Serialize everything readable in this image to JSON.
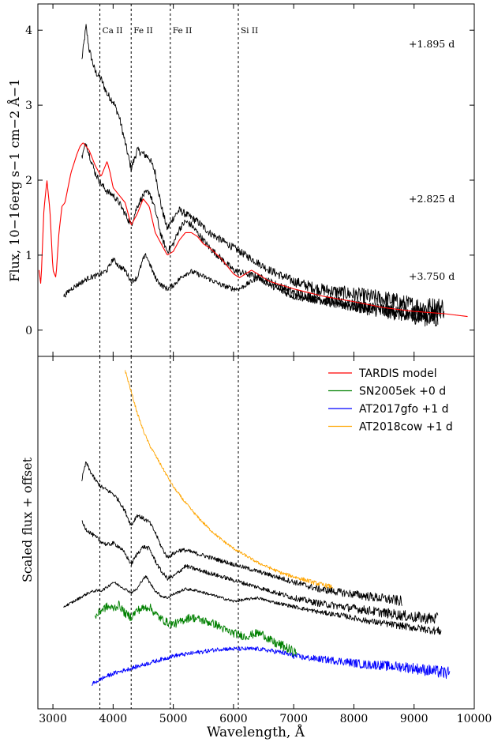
{
  "chart_data": [
    {
      "type": "line",
      "panel": "top",
      "xlabel": "",
      "ylabel": "Flux, 10−16erg s−1 cm−2 Å−1",
      "xlim": [
        2750,
        10000
      ],
      "ylim": [
        -0.35,
        4.35
      ],
      "y_ticks": [
        0,
        1,
        2,
        3,
        4
      ],
      "grid": false,
      "line_annotations": [
        {
          "label": "Ca II",
          "x": 3780
        },
        {
          "label": "Fe II",
          "x": 4300
        },
        {
          "label": "Fe II",
          "x": 4950
        },
        {
          "label": "Si II",
          "x": 6080
        }
      ],
      "epoch_labels": [
        "+1.895 d",
        "+2.825 d",
        "+3.750 d"
      ],
      "series": [
        {
          "color": "#000000",
          "noise": 0.05,
          "x": [
            3480,
            3550,
            3600,
            3700,
            3800,
            3900,
            4000,
            4100,
            4200,
            4300,
            4400,
            4500,
            4600,
            4700,
            4800,
            4900,
            5000,
            5100,
            5200,
            5300,
            5400,
            5600,
            5800,
            6000,
            6200,
            6400,
            6600,
            7000,
            7400,
            7800,
            8200,
            8600,
            8800,
            9000,
            9200,
            9500
          ],
          "y": [
            3.6,
            4.05,
            3.75,
            3.45,
            3.35,
            3.15,
            3.05,
            2.85,
            2.5,
            2.15,
            2.4,
            2.35,
            2.3,
            2.1,
            1.65,
            1.35,
            1.5,
            1.6,
            1.55,
            1.5,
            1.45,
            1.3,
            1.2,
            1.1,
            1.0,
            0.9,
            0.8,
            0.65,
            0.55,
            0.5,
            0.45,
            0.4,
            0.35,
            0.32,
            0.3,
            0.3
          ]
        },
        {
          "color": "#000000",
          "noise": 0.045,
          "x": [
            3480,
            3550,
            3600,
            3700,
            3800,
            3900,
            4000,
            4100,
            4200,
            4300,
            4400,
            4500,
            4600,
            4700,
            4800,
            4900,
            5000,
            5100,
            5200,
            5300,
            5400,
            5600,
            5800,
            6000,
            6200,
            6400,
            6600,
            7000,
            7400,
            7800,
            8200,
            8600,
            9000,
            9400
          ],
          "y": [
            2.3,
            2.5,
            2.35,
            2.1,
            1.95,
            1.85,
            1.8,
            1.7,
            1.55,
            1.4,
            1.65,
            1.8,
            1.85,
            1.6,
            1.25,
            1.05,
            1.15,
            1.35,
            1.45,
            1.4,
            1.3,
            1.1,
            0.95,
            0.8,
            0.75,
            0.72,
            0.65,
            0.5,
            0.42,
            0.35,
            0.3,
            0.25,
            0.2,
            0.15
          ]
        },
        {
          "color": "#000000",
          "noise": 0.035,
          "x": [
            3180,
            3300,
            3400,
            3500,
            3600,
            3700,
            3800,
            3900,
            4000,
            4100,
            4200,
            4300,
            4400,
            4500,
            4550,
            4600,
            4700,
            4800,
            4900,
            5000,
            5100,
            5200,
            5300,
            5400,
            5600,
            5800,
            6000,
            6100,
            6200,
            6400,
            6600,
            6800,
            7000,
            7400,
            7800,
            8200,
            8600,
            9000,
            9400
          ],
          "y": [
            0.45,
            0.55,
            0.6,
            0.65,
            0.7,
            0.72,
            0.75,
            0.8,
            0.95,
            0.85,
            0.8,
            0.65,
            0.7,
            0.95,
            1.0,
            0.9,
            0.7,
            0.6,
            0.55,
            0.6,
            0.68,
            0.75,
            0.78,
            0.75,
            0.68,
            0.6,
            0.55,
            0.55,
            0.6,
            0.7,
            0.6,
            0.52,
            0.45,
            0.4,
            0.35,
            0.3,
            0.25,
            0.2,
            0.18
          ]
        },
        {
          "name": "TARDIS model",
          "color": "#ff0000",
          "noise": 0,
          "x": [
            2770,
            2800,
            2850,
            2900,
            2950,
            3000,
            3050,
            3100,
            3150,
            3200,
            3300,
            3400,
            3450,
            3500,
            3550,
            3600,
            3700,
            3800,
            3900,
            3950,
            4000,
            4100,
            4200,
            4300,
            4400,
            4500,
            4600,
            4700,
            4800,
            4900,
            5000,
            5100,
            5200,
            5300,
            5400,
            5500,
            5600,
            5800,
            6000,
            6100,
            6200,
            6300,
            6400,
            6600,
            7000,
            7500,
            8000,
            8500,
            9000,
            9500,
            9900
          ],
          "y": [
            0.8,
            0.6,
            1.6,
            2.0,
            1.6,
            0.8,
            0.7,
            1.3,
            1.65,
            1.7,
            2.1,
            2.35,
            2.45,
            2.5,
            2.45,
            2.4,
            2.2,
            2.05,
            2.25,
            2.1,
            1.9,
            1.8,
            1.7,
            1.4,
            1.55,
            1.75,
            1.65,
            1.3,
            1.15,
            1.0,
            1.05,
            1.2,
            1.3,
            1.3,
            1.25,
            1.15,
            1.1,
            0.95,
            0.75,
            0.7,
            0.75,
            0.8,
            0.75,
            0.65,
            0.55,
            0.45,
            0.38,
            0.3,
            0.25,
            0.22,
            0.18
          ]
        }
      ]
    },
    {
      "type": "line",
      "panel": "bottom",
      "xlabel": "Wavelength, Å",
      "ylabel": "Scaled flux + offset",
      "xlim": [
        2750,
        10000
      ],
      "ylim": [
        0,
        10
      ],
      "x_ticks": [
        3000,
        4000,
        5000,
        6000,
        7000,
        8000,
        9000,
        10000
      ],
      "grid": false,
      "legend": {
        "placement": "top-right",
        "entries": [
          {
            "name": "TARDIS model",
            "color": "#ff0000"
          },
          {
            "name": "SN2005ek +0 d",
            "color": "#008000"
          },
          {
            "name": "AT2017gfo +1 d",
            "color": "#0000ff"
          },
          {
            "name": "AT2018cow +1 d",
            "color": "#ffa500"
          }
        ]
      },
      "series": [
        {
          "name": "AT2018cow +1 d",
          "color": "#ffa500",
          "noise": 0.04,
          "x": [
            4200,
            4300,
            4400,
            4500,
            4600,
            4800,
            5000,
            5200,
            5400,
            5600,
            5800,
            6000,
            6200,
            6400,
            6600,
            6800,
            7000,
            7200,
            7400,
            7650
          ],
          "y": [
            9.6,
            9.0,
            8.4,
            7.9,
            7.5,
            6.9,
            6.3,
            5.85,
            5.45,
            5.1,
            4.8,
            4.55,
            4.35,
            4.15,
            4.0,
            3.85,
            3.75,
            3.65,
            3.55,
            3.45
          ]
        },
        {
          "color": "#000000",
          "noise": 0.06,
          "x": [
            3480,
            3550,
            3600,
            3700,
            3800,
            3900,
            4000,
            4100,
            4200,
            4300,
            4400,
            4500,
            4600,
            4700,
            4800,
            4900,
            5000,
            5100,
            5200,
            5300,
            5400,
            5600,
            5800,
            6000,
            6200,
            6400,
            6600,
            7000,
            7400,
            7800,
            8200,
            8600,
            8800
          ],
          "y": [
            6.5,
            7.0,
            6.8,
            6.5,
            6.3,
            6.2,
            6.1,
            5.9,
            5.6,
            5.2,
            5.5,
            5.4,
            5.3,
            5.0,
            4.6,
            4.3,
            4.4,
            4.5,
            4.5,
            4.45,
            4.4,
            4.3,
            4.2,
            4.1,
            4.0,
            3.9,
            3.8,
            3.6,
            3.4,
            3.3,
            3.2,
            3.1,
            3.05
          ]
        },
        {
          "color": "#000000",
          "noise": 0.06,
          "x": [
            3480,
            3550,
            3650,
            3800,
            3900,
            4000,
            4100,
            4200,
            4300,
            4400,
            4500,
            4600,
            4700,
            4800,
            4900,
            5000,
            5100,
            5200,
            5300,
            5400,
            5600,
            5800,
            6000,
            6200,
            6400,
            6600,
            7000,
            7400,
            7800,
            8200,
            8600,
            9000,
            9400
          ],
          "y": [
            5.3,
            5.1,
            4.95,
            4.75,
            4.65,
            4.7,
            4.6,
            4.4,
            4.1,
            4.4,
            4.6,
            4.55,
            4.2,
            3.9,
            3.7,
            3.75,
            3.9,
            4.05,
            4.0,
            3.95,
            3.85,
            3.75,
            3.65,
            3.55,
            3.45,
            3.35,
            3.15,
            3.0,
            2.9,
            2.8,
            2.7,
            2.6,
            2.55
          ]
        },
        {
          "color": "#000000",
          "noise": 0.04,
          "x": [
            3180,
            3300,
            3400,
            3500,
            3600,
            3700,
            3800,
            3900,
            4000,
            4100,
            4200,
            4300,
            4400,
            4500,
            4550,
            4600,
            4700,
            4800,
            4900,
            5000,
            5200,
            5400,
            5600,
            5800,
            6000,
            6200,
            6400,
            6600,
            7000,
            7400,
            7800,
            8200,
            8600,
            9000,
            9450
          ],
          "y": [
            2.9,
            3.0,
            3.1,
            3.2,
            3.3,
            3.35,
            3.35,
            3.45,
            3.6,
            3.5,
            3.4,
            3.3,
            3.4,
            3.7,
            3.75,
            3.6,
            3.35,
            3.2,
            3.15,
            3.25,
            3.4,
            3.35,
            3.25,
            3.15,
            3.05,
            3.1,
            3.15,
            3.05,
            2.9,
            2.75,
            2.65,
            2.5,
            2.4,
            2.3,
            2.2
          ]
        },
        {
          "name": "SN2005ek +0 d",
          "color": "#008000",
          "noise": 0.12,
          "x": [
            3700,
            3800,
            3900,
            4000,
            4100,
            4200,
            4300,
            4400,
            4500,
            4600,
            4700,
            4800,
            4900,
            5000,
            5100,
            5200,
            5300,
            5400,
            5500,
            5600,
            5700,
            5800,
            5900,
            6000,
            6100,
            6200,
            6300,
            6400,
            6500,
            6600,
            6700,
            6800,
            6900,
            7000,
            7050
          ],
          "y": [
            2.6,
            2.8,
            2.9,
            2.85,
            2.95,
            2.7,
            2.6,
            2.8,
            2.85,
            2.9,
            2.7,
            2.55,
            2.45,
            2.4,
            2.45,
            2.55,
            2.6,
            2.55,
            2.5,
            2.45,
            2.4,
            2.3,
            2.2,
            2.15,
            2.1,
            2.05,
            2.1,
            2.15,
            2.1,
            1.95,
            1.85,
            1.8,
            1.7,
            1.6,
            1.55
          ]
        },
        {
          "name": "AT2017gfo +1 d",
          "color": "#0000ff",
          "noise": 0.06,
          "x": [
            3650,
            3800,
            4000,
            4200,
            4400,
            4600,
            4800,
            5000,
            5200,
            5400,
            5600,
            5800,
            6000,
            6200,
            6400,
            6600,
            6800,
            7000,
            7200,
            7500,
            7800,
            8000,
            8200,
            8400,
            8600,
            8800,
            9000,
            9200,
            9400,
            9600
          ],
          "y": [
            0.7,
            0.85,
            1.0,
            1.1,
            1.2,
            1.3,
            1.4,
            1.5,
            1.55,
            1.6,
            1.65,
            1.7,
            1.7,
            1.7,
            1.7,
            1.65,
            1.6,
            1.5,
            1.45,
            1.4,
            1.35,
            1.3,
            1.25,
            1.25,
            1.2,
            1.2,
            1.15,
            1.1,
            1.05,
            1.0
          ]
        }
      ]
    }
  ]
}
